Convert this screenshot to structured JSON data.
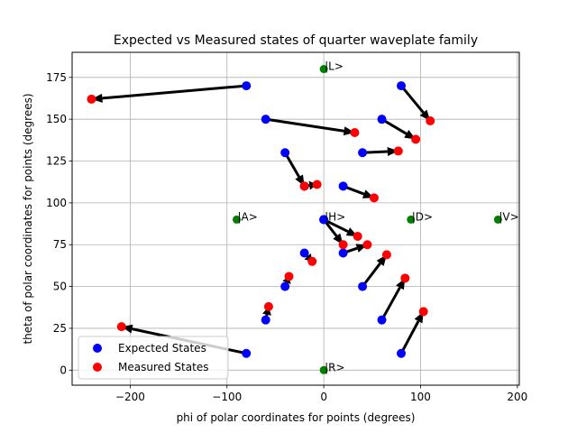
{
  "chart_data": {
    "type": "scatter",
    "title": "Expected vs Measured states of quarter waveplate family",
    "xlabel": "phi of polar coordinates for points (degrees)",
    "ylabel": "theta of polar coordinates for points (degrees)",
    "xlim": [
      -260,
      202
    ],
    "ylim": [
      -9,
      190
    ],
    "xticks": [
      -200,
      -100,
      0,
      100,
      200
    ],
    "yticks": [
      0,
      25,
      50,
      75,
      100,
      125,
      150,
      175
    ],
    "grid": true,
    "legend_position": "lower-left",
    "legend": [
      {
        "label": "Expected States",
        "color": "#0000ff"
      },
      {
        "label": "Measured States",
        "color": "#ff0000"
      }
    ],
    "reference_points": [
      {
        "label": "|L>",
        "phi": 0,
        "theta": 180
      },
      {
        "label": "|A>",
        "phi": -90,
        "theta": 90
      },
      {
        "label": "|H>",
        "phi": 0,
        "theta": 90
      },
      {
        "label": "|D>",
        "phi": 90,
        "theta": 90
      },
      {
        "label": "|V>",
        "phi": 180,
        "theta": 90
      },
      {
        "label": "|R>",
        "phi": 0,
        "theta": 0
      }
    ],
    "reference_color": "#008000",
    "pairs": [
      {
        "expected": [
          -80,
          170
        ],
        "measured": [
          -240,
          162
        ]
      },
      {
        "expected": [
          80,
          170
        ],
        "measured": [
          110,
          149
        ]
      },
      {
        "expected": [
          -60,
          150
        ],
        "measured": [
          32,
          142
        ]
      },
      {
        "expected": [
          60,
          150
        ],
        "measured": [
          95,
          138
        ]
      },
      {
        "expected": [
          -40,
          130
        ],
        "measured": [
          -20,
          110
        ]
      },
      {
        "expected": [
          40,
          130
        ],
        "measured": [
          77,
          131
        ]
      },
      {
        "expected": [
          -20,
          110
        ],
        "measured": [
          -7,
          111
        ]
      },
      {
        "expected": [
          20,
          110
        ],
        "measured": [
          52,
          103
        ]
      },
      {
        "expected": [
          0,
          90
        ],
        "measured": [
          20,
          75
        ]
      },
      {
        "expected": [
          0,
          90
        ],
        "measured": [
          35,
          80
        ]
      },
      {
        "expected": [
          -20,
          70
        ],
        "measured": [
          -12,
          65
        ]
      },
      {
        "expected": [
          20,
          70
        ],
        "measured": [
          45,
          75
        ]
      },
      {
        "expected": [
          -40,
          50
        ],
        "measured": [
          -36,
          56
        ]
      },
      {
        "expected": [
          40,
          50
        ],
        "measured": [
          65,
          69
        ]
      },
      {
        "expected": [
          -60,
          30
        ],
        "measured": [
          -57,
          38
        ]
      },
      {
        "expected": [
          60,
          30
        ],
        "measured": [
          84,
          55
        ]
      },
      {
        "expected": [
          -80,
          10
        ],
        "measured": [
          -209,
          26
        ]
      },
      {
        "expected": [
          80,
          10
        ],
        "measured": [
          103,
          35
        ]
      }
    ]
  }
}
